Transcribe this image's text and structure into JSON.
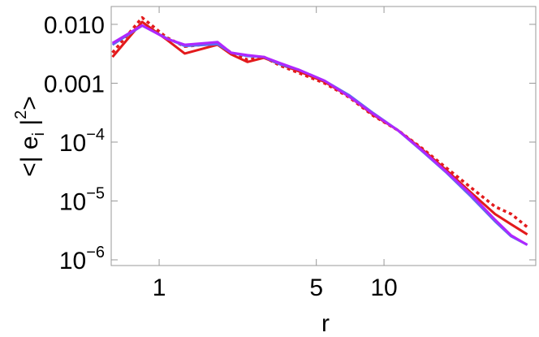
{
  "chart_data": {
    "type": "line",
    "xlabel": "r",
    "ylabel": {
      "pre": "<| e",
      "sub": "i",
      "mid": " |",
      "sup": "2",
      "post": ">"
    },
    "log_x": true,
    "log_y": true,
    "xlim": [
      0.612,
      47.3
    ],
    "ylim": [
      8e-07,
      0.0201
    ],
    "xticks": [
      1,
      5,
      10
    ],
    "yticks": [
      {
        "value": 0.01,
        "label": "0.010"
      },
      {
        "value": 0.001,
        "label": "0.001"
      },
      {
        "value": 0.0001,
        "label": "10",
        "sup": "−4"
      },
      {
        "value": 1e-05,
        "label": "10",
        "sup": "−5"
      },
      {
        "value": 1e-06,
        "label": "10",
        "sup": "−6"
      }
    ],
    "x": [
      0.62,
      0.84,
      1.08,
      1.3,
      1.82,
      2.09,
      2.47,
      2.92,
      3.45,
      4.17,
      5.45,
      6.98,
      8.97,
      11.5,
      14.8,
      19,
      24.3,
      31.2,
      36.8,
      43.4
    ],
    "series": [
      {
        "color": "#e31a1c",
        "linestyle": "dotted",
        "values": [
          0.0033,
          0.013,
          0.006,
          0.0042,
          0.0048,
          0.0033,
          0.0025,
          0.0028,
          0.002,
          0.0015,
          0.001,
          0.00058,
          0.00028,
          0.00016,
          7.8e-05,
          3.6e-05,
          1.7e-05,
          8e-06,
          6e-06,
          3.6e-06
        ]
      },
      {
        "color": "#e31a1c",
        "linestyle": "solid",
        "values": [
          0.0028,
          0.011,
          0.0055,
          0.0032,
          0.0045,
          0.0031,
          0.0023,
          0.0027,
          0.0021,
          0.0016,
          0.00105,
          0.0006,
          0.00029,
          0.00016,
          7.5e-05,
          3.3e-05,
          1.4e-05,
          6e-06,
          4e-06,
          2.7e-06
        ]
      },
      {
        "color": "#5b6cf0",
        "linestyle": "solid",
        "values": [
          0.0045,
          0.0095,
          0.0058,
          0.0043,
          0.0046,
          0.0033,
          0.0029,
          0.0028,
          0.0021,
          0.0017,
          0.0011,
          0.00063,
          0.00031,
          0.00016,
          7e-05,
          3e-05,
          1.2e-05,
          4.5e-06,
          2.5e-06,
          1.8e-06
        ]
      },
      {
        "color": "#b026ff",
        "linestyle": "solid",
        "values": [
          0.0048,
          0.0096,
          0.0057,
          0.0045,
          0.005,
          0.0033,
          0.003,
          0.0028,
          0.0022,
          0.0017,
          0.0011,
          0.0006,
          0.0003,
          0.00016,
          7.2e-05,
          3.1e-05,
          1.3e-05,
          4.8e-06,
          2.6e-06,
          1.8e-06
        ]
      }
    ]
  }
}
